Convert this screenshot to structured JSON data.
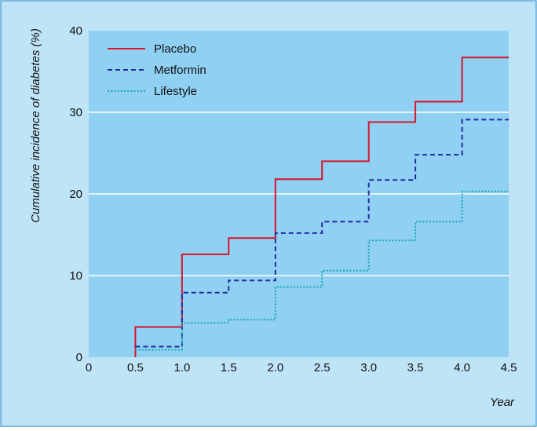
{
  "chart_data": {
    "type": "line",
    "step": true,
    "xlabel": "Year",
    "ylabel": "Cumulative incidence of diabetes (%)",
    "xlim": [
      0,
      4.5
    ],
    "ylim": [
      0,
      40
    ],
    "x_ticks": [
      "0",
      "0.5",
      "1.0",
      "1.5",
      "2.0",
      "2.5",
      "3.0",
      "3.5",
      "4.0",
      "4.5"
    ],
    "y_ticks": [
      "0",
      "10",
      "20",
      "30",
      "40"
    ],
    "grid": "horizontal",
    "legend_position": "top-left",
    "colors": {
      "outer_background": "#bfe4f8",
      "plot_background": "#8fd0f3",
      "gridline": "#ffffff",
      "border": "#5aa8d8"
    },
    "series": [
      {
        "name": "Placebo",
        "color": "#d9142b",
        "dash": "solid",
        "points": [
          [
            0.5,
            0
          ],
          [
            0.5,
            3.7
          ],
          [
            1.0,
            12.6
          ],
          [
            1.5,
            14.6
          ],
          [
            2.0,
            21.8
          ],
          [
            2.5,
            24.0
          ],
          [
            3.0,
            28.8
          ],
          [
            3.5,
            31.3
          ],
          [
            4.0,
            36.7
          ],
          [
            4.5,
            36.7
          ]
        ]
      },
      {
        "name": "Metformin",
        "color": "#1f2d9e",
        "dash": "dashed",
        "points": [
          [
            0.5,
            1.3
          ],
          [
            1.0,
            7.9
          ],
          [
            1.5,
            9.4
          ],
          [
            2.0,
            15.2
          ],
          [
            2.5,
            16.6
          ],
          [
            3.0,
            21.7
          ],
          [
            3.5,
            24.8
          ],
          [
            4.0,
            29.1
          ],
          [
            4.5,
            29.1
          ]
        ]
      },
      {
        "name": "Lifestyle",
        "color": "#1aa6b7",
        "dash": "dotted",
        "points": [
          [
            0.5,
            0.9
          ],
          [
            1.0,
            4.2
          ],
          [
            1.5,
            4.6
          ],
          [
            2.0,
            8.6
          ],
          [
            2.5,
            10.6
          ],
          [
            3.0,
            14.3
          ],
          [
            3.5,
            16.6
          ],
          [
            4.0,
            20.3
          ],
          [
            4.5,
            20.3
          ]
        ]
      }
    ]
  }
}
